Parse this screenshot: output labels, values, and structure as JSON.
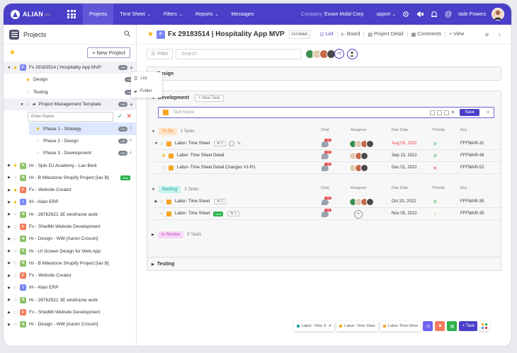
{
  "topnav": {
    "brand": "ALIAN",
    "version": "v4.0",
    "items": [
      {
        "label": "Projects",
        "caret": false
      },
      {
        "label": "Time Sheet",
        "caret": true
      },
      {
        "label": "Filters",
        "caret": true
      },
      {
        "label": "Reports",
        "caret": true
      },
      {
        "label": "Messages",
        "caret": false
      }
    ],
    "company_label": "Company",
    "company_name": "Exxon Mobil Corp",
    "support_label": "upport",
    "user_name": "Iade Powers",
    "accent": "#4a3fc8"
  },
  "sidebar": {
    "title": "Projects",
    "new_project_label": "+ New Project",
    "enter_name_placeholder": "Enter Name",
    "popup": {
      "list": "List",
      "folder": "Folder"
    },
    "rows": [
      {
        "tri": "▼",
        "star": true,
        "pill": "F",
        "pill_color": "#7b86f5",
        "label": "Fx 29183514 | Hospitality App MVP",
        "count": "+99",
        "plus": true,
        "indent": 0,
        "selected": true
      },
      {
        "tri": "",
        "star": true,
        "pill": "",
        "label": "Design",
        "count": "+99",
        "indent": 1
      },
      {
        "tri": "",
        "star": false,
        "pill": "",
        "label": "Testing",
        "count": "+99",
        "indent": 1
      },
      {
        "tri": "▼",
        "star": false,
        "pill": "",
        "folder": true,
        "label": "Project Management Template",
        "count": "+99",
        "plus": true,
        "indent": 1,
        "selected": true
      },
      {
        "type": "entername"
      },
      {
        "tri": "",
        "star": true,
        "pill": "",
        "label": "Phase 1 - Strategy",
        "count": "+99",
        "num": "3",
        "indent": 2,
        "phase_sel": true
      },
      {
        "tri": "",
        "star": false,
        "pill": "",
        "label": "Phase 2 - Design",
        "count": "+99",
        "num": "4",
        "indent": 2
      },
      {
        "tri": "",
        "star": false,
        "pill": "",
        "label": "Phase 3 - Development",
        "count": "+99",
        "num": "4",
        "indent": 2
      },
      {
        "tri": "▶",
        "star": true,
        "pill": "H",
        "pill_color": "#8fc26a",
        "label": "Hr - Spin DJ Academy - Lan Berk",
        "indent": 0
      },
      {
        "tri": "▶",
        "star": false,
        "pill": "H",
        "pill_color": "#8fc26a",
        "label": "Hr - B Milestone Shopify Project [Ian B]",
        "new": "New",
        "indent": 0
      },
      {
        "tri": "▶",
        "star": true,
        "pill": "F",
        "pill_color": "#f47b5e",
        "label": "Fx - Website Creator",
        "indent": 0
      },
      {
        "tri": "▶",
        "star": true,
        "pill": "I",
        "pill_color": "#7b86f5",
        "label": "IH - Alian ERP",
        "indent": 0
      },
      {
        "tri": "▶",
        "star": false,
        "pill": "H",
        "pill_color": "#8fc26a",
        "label": "Hr - 28762921 3E wireframe work",
        "indent": 0
      },
      {
        "tri": "▶",
        "star": false,
        "pill": "F",
        "pill_color": "#f47b5e",
        "label": "Fx - ShedMi Website Development",
        "indent": 0
      },
      {
        "tri": "▶",
        "star": false,
        "pill": "H",
        "pill_color": "#8fc26a",
        "label": "Hr - Design - WW [Aaron Crossin]",
        "indent": 0
      },
      {
        "tri": "▶",
        "star": false,
        "pill": "H",
        "pill_color": "#8fc26a",
        "label": "Hr - UI Screen Design for Web App",
        "indent": 0
      },
      {
        "tri": "▶",
        "star": false,
        "pill": "H",
        "pill_color": "#8fc26a",
        "label": "Hr - B Milestone Shopify Project [Ian B]",
        "indent": 0
      },
      {
        "tri": "▶",
        "star": false,
        "pill": "F",
        "pill_color": "#f47b5e",
        "label": "Fx - Website Creator",
        "indent": 0
      },
      {
        "tri": "▶",
        "star": false,
        "pill": "I",
        "pill_color": "#7b86f5",
        "label": "IH - Alian ERP",
        "indent": 0
      },
      {
        "tri": "▶",
        "star": false,
        "pill": "H",
        "pill_color": "#8fc26a",
        "label": "Hr - 28762921 3E wireframe work",
        "indent": 0
      },
      {
        "tri": "▶",
        "star": false,
        "pill": "F",
        "pill_color": "#f47b5e",
        "label": "Fx - ShedMi Website Development",
        "indent": 0
      },
      {
        "tri": "▶",
        "star": false,
        "pill": "H",
        "pill_color": "#8fc26a",
        "label": "Hr - Design - WW [Aaron Crossin]",
        "indent": 0
      }
    ]
  },
  "main": {
    "project_pill": "F",
    "project_title": "Fx 29183514 | Hospitality App MVP",
    "project_key": "FFFWAR",
    "views": [
      "List",
      "Board",
      "Project Detail",
      "Comments",
      "+ View"
    ],
    "filter_label": "Filter",
    "search_placeholder": "Search",
    "assignee_more": "+5",
    "design_label": "Design",
    "development_label": "Development",
    "new_task_btn": "+ New Task",
    "task_name_placeholder": "Task Name",
    "save_label": "Save",
    "testing_label": "Testing",
    "columns": {
      "chat": "Chat",
      "assignee": "Assignee",
      "due": "Due Date",
      "priority": "Priority",
      "key": "Key"
    },
    "groups": {
      "todo": {
        "label": "To Do",
        "count": "1 Tasks"
      },
      "backlog": {
        "label": "Backlog",
        "count": "2 Tasks"
      },
      "review": {
        "label": "In Review",
        "count": "5 Tasks"
      }
    },
    "todo_tasks": [
      {
        "name": "Labor- Time Sheet",
        "sub": "2",
        "chat": "+99",
        "due": "Aug 03, 2022",
        "due_red": true,
        "prio": "=",
        "prio_color": "#2bb24c",
        "key": "FFFWAR-31",
        "level": 0
      },
      {
        "name": "Labor- Time Sheet Detail",
        "chat": "+99",
        "due": "Sep 13, 2022",
        "prio": "=",
        "prio_color": "#2bb24c",
        "key": "FFFWAR-48",
        "level": 1
      },
      {
        "name": "Labor- Time Sheet Detail Changes V1-R1",
        "chat": "+99",
        "due": "Dec 01, 2022",
        "prio": "≈",
        "prio_color": "#e8403c",
        "key": "FFFWAR-52",
        "level": 1
      }
    ],
    "backlog_tasks": [
      {
        "name": "Labor- Time Sheet",
        "sub": "2",
        "chat": "+99",
        "due": "Oct 20, 2022",
        "prio": "=",
        "prio_color": "#2bb24c",
        "key": "FFFWAR-35"
      },
      {
        "name": "Labor- Time Sheet",
        "new": "New",
        "sub": "+",
        "chat": "+99",
        "due": "Nov 05, 2022",
        "prio": "↑",
        "prio_color": "#f5a623",
        "key": "FFFWAR-35"
      }
    ]
  },
  "bottombar": {
    "tabs": [
      {
        "label": "Labor- Time S",
        "color": "#1aa89a"
      },
      {
        "label": "Labor- Time Shee",
        "color": "#f5a623"
      },
      {
        "label": "Labor-Time-Shee",
        "color": "#f5a623"
      }
    ],
    "task_btn": "+ Task"
  }
}
